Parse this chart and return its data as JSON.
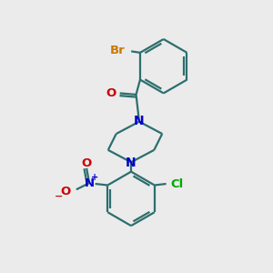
{
  "background_color": "#ebebeb",
  "bond_color": "#2d6e6e",
  "bond_width": 1.6,
  "atom_colors": {
    "Br": "#cc7700",
    "O": "#cc0000",
    "N": "#0000cc",
    "Cl": "#00aa00",
    "C": "#2d6e6e"
  },
  "font_size": 9.5,
  "figsize": [
    3.0,
    3.0
  ],
  "dpi": 100
}
